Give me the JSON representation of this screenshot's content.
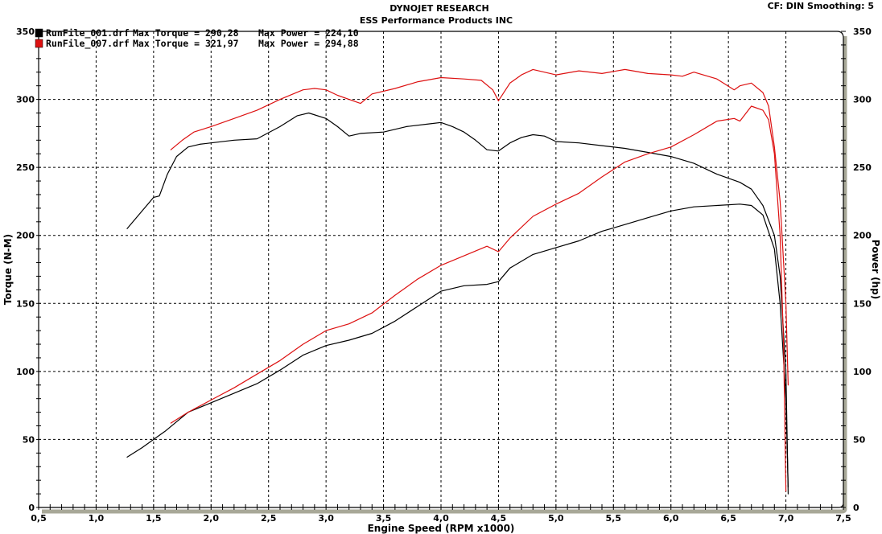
{
  "header": {
    "title": "DYNOJET RESEARCH",
    "subtitle": "ESS Performance Products INC",
    "settings": "CF: DIN  Smoothing: 5"
  },
  "colors": {
    "run1": "#000000",
    "run2": "#cc1111",
    "grid": "#000000",
    "frame_shadow": "#a8a898",
    "background": "#ffffff"
  },
  "legend": [
    {
      "name": "RunFile_001.drf",
      "torque_label": "Max Torque = 290,28",
      "power_label": "Max Power = 224,10",
      "color": "#000000"
    },
    {
      "name": "RunFile_007.drf",
      "torque_label": "Max Torque = 321,97",
      "power_label": "Max Power = 294,88",
      "color": "#dd1111"
    }
  ],
  "chart_data": {
    "type": "line",
    "title": "DYNOJET RESEARCH — ESS Performance Products INC",
    "xlabel": "Engine Speed (RPM x1000)",
    "ylabel": "Torque (N-M)",
    "y2label": "Power (hp)",
    "xlim": [
      0.5,
      7.5
    ],
    "ylim": [
      0,
      350
    ],
    "y2lim": [
      0,
      350
    ],
    "grid": true,
    "legend_position": "top-left",
    "x_ticks": [
      "0,5",
      "1,0",
      "1,5",
      "2,0",
      "2,5",
      "3,0",
      "3,5",
      "4,0",
      "4,5",
      "5,0",
      "5,5",
      "6,0",
      "6,5",
      "7,0",
      "7,5"
    ],
    "y_ticks": [
      "0",
      "50",
      "100",
      "150",
      "200",
      "250",
      "300",
      "350"
    ],
    "y2_ticks": [
      "0",
      "50",
      "100",
      "150",
      "200",
      "250",
      "300",
      "350"
    ],
    "series": [
      {
        "name": "RunFile_001.drf Torque",
        "axis": "left",
        "color": "#000000",
        "x": [
          1.27,
          1.4,
          1.5,
          1.55,
          1.62,
          1.7,
          1.8,
          1.9,
          2.0,
          2.2,
          2.4,
          2.6,
          2.75,
          2.85,
          3.0,
          3.1,
          3.2,
          3.3,
          3.5,
          3.7,
          3.9,
          4.0,
          4.1,
          4.2,
          4.3,
          4.4,
          4.5,
          4.6,
          4.7,
          4.8,
          4.9,
          5.0,
          5.2,
          5.4,
          5.6,
          5.8,
          6.0,
          6.2,
          6.4,
          6.6,
          6.7,
          6.8,
          6.9,
          6.95,
          7.0,
          7.02
        ],
        "values": [
          205,
          218,
          228,
          229,
          245,
          258,
          265,
          267,
          268,
          270,
          271,
          280,
          288,
          290,
          286,
          280,
          273,
          275,
          276,
          280,
          282,
          283,
          280,
          276,
          270,
          263,
          262,
          268,
          272,
          274,
          273,
          269,
          268,
          266,
          264,
          261,
          258,
          253,
          245,
          239,
          234,
          222,
          200,
          170,
          100,
          10
        ]
      },
      {
        "name": "RunFile_001.drf Power",
        "axis": "right",
        "color": "#000000",
        "x": [
          1.27,
          1.4,
          1.5,
          1.6,
          1.7,
          1.8,
          2.0,
          2.2,
          2.4,
          2.6,
          2.8,
          3.0,
          3.2,
          3.4,
          3.6,
          3.8,
          4.0,
          4.2,
          4.4,
          4.5,
          4.6,
          4.8,
          5.0,
          5.2,
          5.4,
          5.6,
          5.8,
          6.0,
          6.2,
          6.4,
          6.6,
          6.7,
          6.8,
          6.9,
          6.95,
          7.0,
          7.02
        ],
        "values": [
          37,
          44,
          50,
          56,
          63,
          70,
          77,
          84,
          91,
          101,
          112,
          119,
          123,
          128,
          137,
          148,
          159,
          163,
          164,
          166,
          176,
          186,
          191,
          196,
          203,
          208,
          213,
          218,
          221,
          222,
          223,
          222,
          215,
          190,
          150,
          80,
          15
        ]
      },
      {
        "name": "RunFile_007.drf Torque",
        "axis": "left",
        "color": "#dd1111",
        "x": [
          1.65,
          1.75,
          1.85,
          2.0,
          2.2,
          2.4,
          2.6,
          2.8,
          2.9,
          3.0,
          3.1,
          3.2,
          3.3,
          3.4,
          3.6,
          3.8,
          4.0,
          4.2,
          4.35,
          4.45,
          4.5,
          4.6,
          4.7,
          4.8,
          5.0,
          5.2,
          5.4,
          5.6,
          5.8,
          6.0,
          6.1,
          6.2,
          6.4,
          6.55,
          6.6,
          6.7,
          6.8,
          6.85,
          6.9,
          6.95,
          7.0,
          7.02
        ],
        "values": [
          263,
          270,
          276,
          280,
          286,
          292,
          300,
          307,
          308,
          307,
          303,
          300,
          297,
          304,
          308,
          313,
          316,
          315,
          314,
          307,
          299,
          312,
          318,
          322,
          318,
          321,
          319,
          322,
          319,
          318,
          317,
          320,
          315,
          307,
          310,
          312,
          305,
          295,
          265,
          225,
          150,
          90
        ]
      },
      {
        "name": "RunFile_007.drf Power",
        "axis": "right",
        "color": "#dd1111",
        "x": [
          1.65,
          1.8,
          2.0,
          2.2,
          2.4,
          2.6,
          2.8,
          3.0,
          3.2,
          3.4,
          3.6,
          3.8,
          4.0,
          4.2,
          4.4,
          4.5,
          4.6,
          4.8,
          5.0,
          5.2,
          5.4,
          5.6,
          5.8,
          6.0,
          6.2,
          6.4,
          6.55,
          6.6,
          6.7,
          6.8,
          6.85,
          6.9,
          6.95,
          6.98,
          7.0
        ],
        "values": [
          62,
          70,
          79,
          88,
          98,
          108,
          120,
          130,
          135,
          143,
          156,
          168,
          178,
          185,
          192,
          188,
          198,
          214,
          223,
          231,
          243,
          254,
          260,
          265,
          274,
          284,
          286,
          284,
          295,
          292,
          285,
          260,
          200,
          120,
          12
        ]
      }
    ]
  }
}
